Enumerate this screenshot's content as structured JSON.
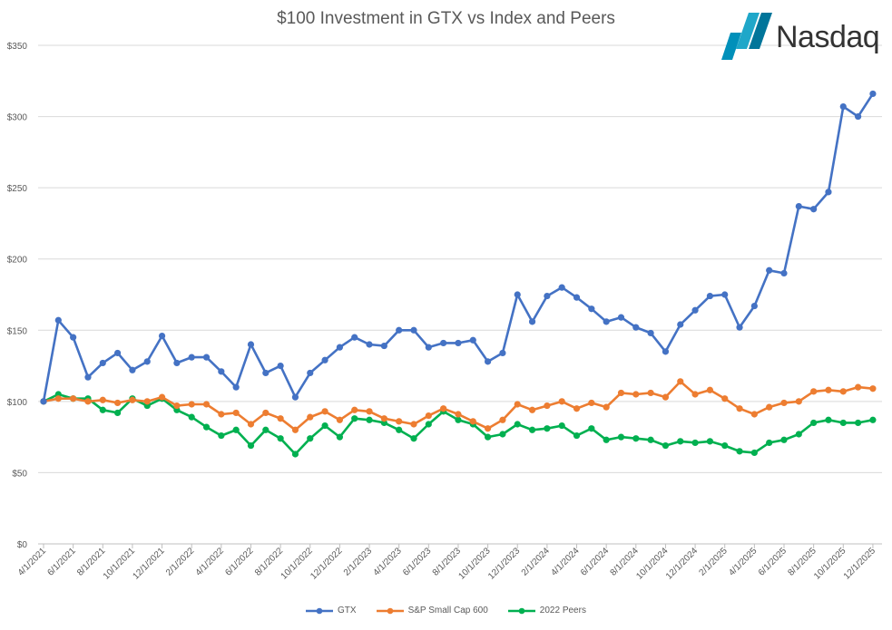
{
  "chart_data": {
    "type": "line",
    "title": "$100 Investment in GTX vs Index and Peers",
    "xlabel": "",
    "ylabel": "",
    "ylim": [
      0,
      350
    ],
    "y_ticks": [
      "$0",
      "$50",
      "$100",
      "$150",
      "$200",
      "$250",
      "$300",
      "$350"
    ],
    "y_tick_values": [
      0,
      50,
      100,
      150,
      200,
      250,
      300,
      350
    ],
    "x_start": "4/1/2021",
    "x_end": "12/1/2025",
    "x_frequency": "monthly",
    "x_tick_labels": [
      "4/1/2021",
      "6/1/2021",
      "8/1/2021",
      "10/1/2021",
      "12/1/2021",
      "2/1/2022",
      "4/1/2022",
      "6/1/2022",
      "8/1/2022",
      "10/1/2022",
      "12/1/2022",
      "2/1/2023",
      "4/1/2023",
      "6/1/2023",
      "8/1/2023",
      "10/1/2023",
      "12/1/2023",
      "2/1/2024",
      "4/1/2024",
      "6/1/2024",
      "8/1/2024",
      "10/1/2024",
      "12/1/2024",
      "2/1/2025",
      "4/1/2025",
      "6/1/2025",
      "8/1/2025",
      "10/1/2025",
      "12/1/2025"
    ],
    "grid": true,
    "legend": "bottom",
    "series": [
      {
        "name": "GTX",
        "color": "#4472C4",
        "values": [
          100,
          157,
          145,
          117,
          127,
          134,
          122,
          128,
          146,
          127,
          131,
          131,
          121,
          110,
          140,
          120,
          125,
          103,
          120,
          129,
          138,
          145,
          140,
          139,
          150,
          150,
          138,
          141,
          141,
          143,
          128,
          134,
          175,
          156,
          174,
          180,
          173,
          165,
          156,
          159,
          152,
          148,
          135,
          154,
          164,
          174,
          175,
          152,
          167,
          192,
          190,
          237,
          235,
          247,
          307,
          300,
          316
        ]
      },
      {
        "name": "S&P Small Cap 600",
        "color": "#ED7D31",
        "values": [
          100,
          102,
          102,
          100,
          101,
          99,
          101,
          100,
          103,
          97,
          98,
          98,
          91,
          92,
          84,
          92,
          88,
          80,
          89,
          93,
          87,
          94,
          93,
          88,
          86,
          84,
          90,
          95,
          91,
          86,
          81,
          87,
          98,
          94,
          97,
          100,
          95,
          99,
          96,
          106,
          105,
          106,
          103,
          114,
          105,
          108,
          102,
          95,
          91,
          96,
          99,
          100,
          107,
          108,
          107,
          110,
          109
        ]
      },
      {
        "name": "2022 Peers",
        "color": "#00B050",
        "values": [
          100,
          105,
          102,
          102,
          94,
          92,
          102,
          97,
          102,
          94,
          89,
          82,
          76,
          80,
          69,
          80,
          74,
          63,
          74,
          83,
          75,
          88,
          87,
          85,
          80,
          74,
          84,
          93,
          87,
          84,
          75,
          77,
          84,
          80,
          81,
          83,
          76,
          81,
          73,
          75,
          74,
          73,
          69,
          72,
          71,
          72,
          69,
          65,
          64,
          71,
          73,
          77,
          85,
          87,
          85,
          85,
          87
        ]
      }
    ]
  },
  "logo": {
    "text": "Nasdaq",
    "color": "#0090BA"
  }
}
